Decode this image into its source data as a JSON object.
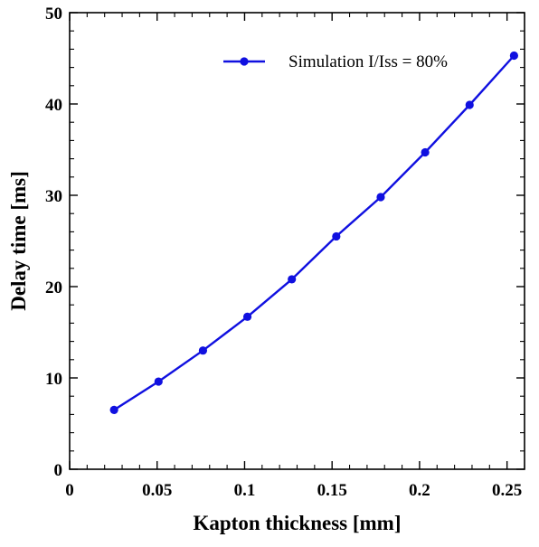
{
  "chart_data": {
    "type": "line",
    "title": "",
    "xlabel": "Kapton thickness [mm]",
    "ylabel": "Delay time [ms]",
    "xlim": [
      0,
      0.26
    ],
    "ylim": [
      0,
      50
    ],
    "x_ticks": [
      0,
      0.05,
      0.1,
      0.15,
      0.2,
      0.25
    ],
    "x_tick_labels": [
      "0",
      "0.05",
      "0.1",
      "0.15",
      "0.2",
      "0.25"
    ],
    "y_ticks": [
      0,
      10,
      20,
      30,
      40,
      50
    ],
    "y_tick_labels": [
      "0",
      "10",
      "20",
      "30",
      "40",
      "50"
    ],
    "grid": false,
    "legend_position": "top-right",
    "series": [
      {
        "name": "Simulation I/Iss = 80%",
        "color": "#1010e0",
        "marker": "circle",
        "x": [
          0.0254,
          0.0508,
          0.0762,
          0.1016,
          0.127,
          0.1524,
          0.1778,
          0.2032,
          0.2286,
          0.254
        ],
        "y": [
          6.5,
          9.6,
          13.0,
          16.7,
          20.8,
          25.5,
          29.8,
          34.7,
          39.9,
          45.3
        ]
      }
    ]
  }
}
